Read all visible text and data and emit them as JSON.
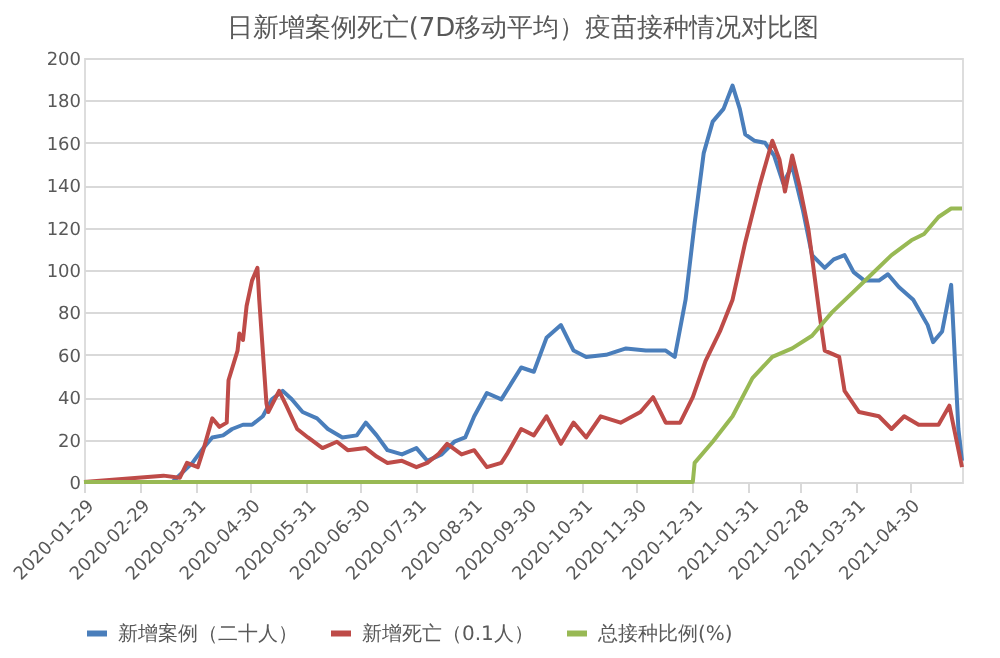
{
  "chart_data": {
    "type": "line",
    "title": "日新增案例死亡(7D移动平均）疫苗接种情况对比图",
    "xlim": [
      "2020-01-29",
      "2021-05-29"
    ],
    "xticks": [
      "2020-01-29",
      "2020-02-29",
      "2020-03-31",
      "2020-04-30",
      "2020-05-31",
      "2020-06-30",
      "2020-07-31",
      "2020-08-31",
      "2020-09-30",
      "2020-10-31",
      "2020-11-30",
      "2020-12-31",
      "2021-01-31",
      "2021-02-28",
      "2021-03-31",
      "2021-04-30"
    ],
    "ylim": [
      0,
      200
    ],
    "yticks": [
      0,
      20,
      40,
      60,
      80,
      100,
      120,
      140,
      160,
      180,
      200
    ],
    "grid": "y",
    "legend": "bottom",
    "marker": "none",
    "line_style": "solid",
    "series": [
      {
        "name": "新增案例（二十人）",
        "color": "#4a7ebb",
        "x": [
          "2020-01-29",
          "2020-03-18",
          "2020-03-29",
          "2020-04-04",
          "2020-04-09",
          "2020-04-15",
          "2020-04-20",
          "2020-04-26",
          "2020-05-01",
          "2020-05-07",
          "2020-05-12",
          "2020-05-18",
          "2020-05-23",
          "2020-05-29",
          "2020-06-06",
          "2020-06-12",
          "2020-06-20",
          "2020-06-28",
          "2020-07-03",
          "2020-07-09",
          "2020-07-15",
          "2020-07-23",
          "2020-07-31",
          "2020-08-06",
          "2020-08-14",
          "2020-08-21",
          "2020-08-27",
          "2020-09-01",
          "2020-09-08",
          "2020-09-16",
          "2020-09-27",
          "2020-10-04",
          "2020-10-11",
          "2020-10-19",
          "2020-10-26",
          "2020-11-02",
          "2020-11-13",
          "2020-11-24",
          "2020-12-05",
          "2020-12-16",
          "2020-12-21",
          "2020-12-27",
          "2021-01-01",
          "2021-01-06",
          "2021-01-11",
          "2021-01-17",
          "2021-01-22",
          "2021-01-26",
          "2021-01-29",
          "2021-02-03",
          "2021-02-09",
          "2021-02-14",
          "2021-02-19",
          "2021-02-24",
          "2021-03-02",
          "2021-03-07",
          "2021-03-14",
          "2021-03-19",
          "2021-03-25",
          "2021-03-30",
          "2021-04-05",
          "2021-04-13",
          "2021-04-18",
          "2021-04-24",
          "2021-05-02",
          "2021-05-10",
          "2021-05-13",
          "2021-05-18",
          "2021-05-23",
          "2021-05-27",
          "2021-05-29"
        ],
        "values": [
          0,
          0,
          9,
          16,
          21,
          22,
          25,
          27,
          27,
          31,
          39,
          43,
          39,
          33,
          30,
          25,
          21,
          22,
          28,
          22,
          15,
          13,
          16,
          10,
          13,
          19,
          21,
          31,
          42,
          39,
          54,
          52,
          68,
          74,
          62,
          59,
          60,
          63,
          62,
          62,
          59,
          86,
          122,
          155,
          170,
          176,
          187,
          176,
          164,
          161,
          160,
          154,
          141,
          149,
          128,
          107,
          101,
          105,
          107,
          99,
          95,
          95,
          98,
          92,
          86,
          74,
          66,
          71,
          93,
          25,
          10
        ]
      },
      {
        "name": "新增死亡（0.1人）",
        "color": "#be4b48",
        "x": [
          "2020-01-29",
          "2020-03-13",
          "2020-03-22",
          "2020-03-26",
          "2020-04-01",
          "2020-04-04",
          "2020-04-09",
          "2020-04-13",
          "2020-04-17",
          "2020-04-18",
          "2020-04-23",
          "2020-04-24",
          "2020-04-26",
          "2020-04-28",
          "2020-05-01",
          "2020-05-04",
          "2020-05-05",
          "2020-05-09",
          "2020-05-10",
          "2020-05-16",
          "2020-05-20",
          "2020-05-26",
          "2020-06-01",
          "2020-06-09",
          "2020-06-17",
          "2020-06-23",
          "2020-07-03",
          "2020-07-09",
          "2020-07-15",
          "2020-07-23",
          "2020-07-31",
          "2020-08-06",
          "2020-08-12",
          "2020-08-17",
          "2020-08-25",
          "2020-09-01",
          "2020-09-08",
          "2020-09-16",
          "2020-09-19",
          "2020-09-27",
          "2020-10-04",
          "2020-10-11",
          "2020-10-19",
          "2020-10-26",
          "2020-11-02",
          "2020-11-10",
          "2020-11-21",
          "2020-12-02",
          "2020-12-09",
          "2020-12-16",
          "2020-12-24",
          "2020-12-31",
          "2021-01-07",
          "2021-01-15",
          "2021-01-22",
          "2021-01-29",
          "2021-02-06",
          "2021-02-13",
          "2021-02-17",
          "2021-02-20",
          "2021-02-24",
          "2021-02-28",
          "2021-03-05",
          "2021-03-11",
          "2021-03-14",
          "2021-03-22",
          "2021-03-25",
          "2021-04-02",
          "2021-04-13",
          "2021-04-20",
          "2021-04-27",
          "2021-05-05",
          "2021-05-16",
          "2021-05-22",
          "2021-05-29"
        ],
        "values": [
          0,
          3,
          2,
          9,
          7,
          15,
          30,
          26,
          28,
          48,
          62,
          70,
          67,
          83,
          95,
          101,
          86,
          37,
          33,
          43,
          36,
          25,
          21,
          16,
          19,
          15,
          16,
          12,
          9,
          10,
          7,
          9,
          13,
          18,
          13,
          15,
          7,
          9,
          13,
          25,
          22,
          31,
          18,
          28,
          21,
          31,
          28,
          33,
          40,
          28,
          28,
          40,
          57,
          71,
          86,
          113,
          140,
          161,
          152,
          137,
          154,
          140,
          119,
          80,
          62,
          59,
          43,
          33,
          31,
          25,
          31,
          27,
          27,
          36,
          7
        ]
      },
      {
        "name": "总接种比例(%)",
        "color": "#98b954",
        "x": [
          "2020-01-29",
          "2020-12-31",
          "2021-01-01",
          "2021-01-11",
          "2021-01-22",
          "2021-02-02",
          "2021-02-13",
          "2021-02-24",
          "2021-03-07",
          "2021-03-18",
          "2021-03-29",
          "2021-04-09",
          "2021-04-20",
          "2021-05-01",
          "2021-05-08",
          "2021-05-16",
          "2021-05-23",
          "2021-05-29"
        ],
        "values": [
          0,
          0,
          9,
          19,
          31,
          49,
          59,
          63,
          69,
          80,
          89,
          98,
          107,
          114,
          117,
          125,
          129,
          129
        ]
      }
    ]
  }
}
